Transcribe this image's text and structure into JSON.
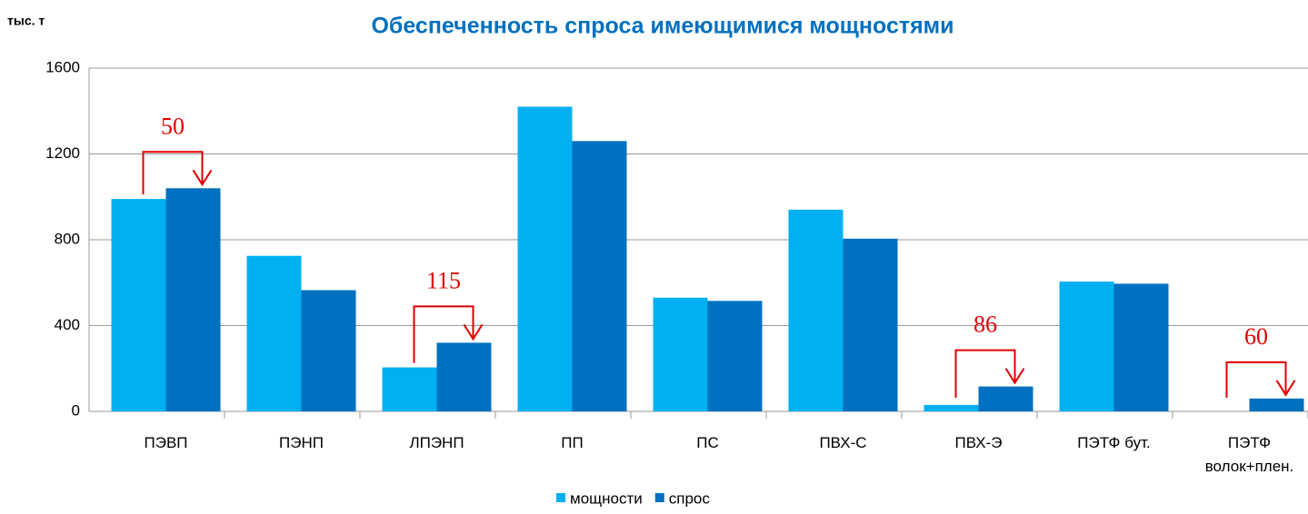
{
  "chart_data": {
    "type": "bar",
    "title": "Обеспеченность спроса имеющимися мощностями",
    "ylabel": "тыс. т",
    "categories": [
      "ПЭВП",
      "ПЭНП",
      "ЛПЭНП",
      "ПП",
      "ПС",
      "ПВХ-С",
      "ПВХ-Э",
      "ПЭТФ бут.",
      "ПЭТФ\nволок+плен."
    ],
    "series": [
      {
        "name": "мощности",
        "color": "#00b0f0",
        "values": [
          990,
          725,
          205,
          1420,
          530,
          940,
          30,
          605,
          0
        ]
      },
      {
        "name": "спрос",
        "color": "#0070c0",
        "values": [
          1040,
          565,
          320,
          1260,
          515,
          805,
          116,
          595,
          60
        ]
      }
    ],
    "deficit": [
      50,
      null,
      115,
      null,
      null,
      null,
      86,
      null,
      60
    ],
    "deficit_color": "#e00000",
    "ylim": [
      0,
      1600
    ],
    "yticks": [
      0,
      400,
      800,
      1200,
      1600
    ],
    "grid": true,
    "legend": "bottom"
  }
}
